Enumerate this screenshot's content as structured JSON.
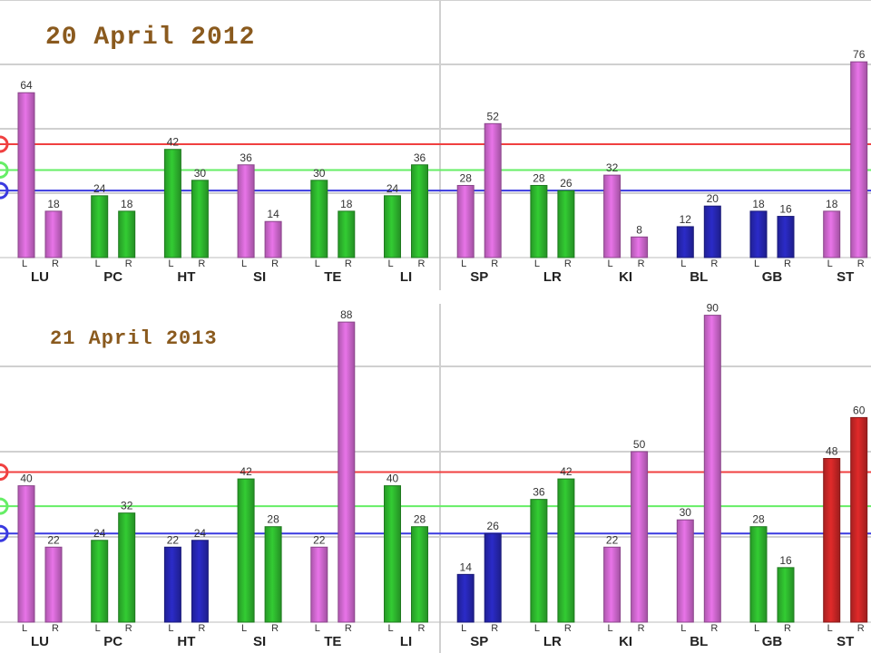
{
  "colors": {
    "magenta": "#e874e8",
    "green": "#33cc33",
    "blue": "#2b2bc8",
    "red": "#e02a2a",
    "line_red": "#f04040",
    "line_green": "#66ee66",
    "line_blue": "#3a3ae0",
    "grid": "#d0d0d0"
  },
  "chart_data": [
    {
      "type": "bar",
      "title": "20 April 2012",
      "ylim": [
        0,
        100
      ],
      "groups": [
        "LU",
        "PC",
        "HT",
        "SI",
        "TE",
        "LI",
        "SP",
        "LR",
        "KI",
        "BL",
        "GB",
        "ST"
      ],
      "sides": [
        "L",
        "R"
      ],
      "reference_lines": [
        {
          "color": "red",
          "value": 44
        },
        {
          "color": "green",
          "value": 34
        },
        {
          "color": "blue",
          "value": 26
        }
      ],
      "bars": [
        {
          "group": "LU",
          "side": "L",
          "value": 64,
          "color": "magenta"
        },
        {
          "group": "LU",
          "side": "R",
          "value": 18,
          "color": "magenta"
        },
        {
          "group": "PC",
          "side": "L",
          "value": 24,
          "color": "green"
        },
        {
          "group": "PC",
          "side": "R",
          "value": 18,
          "color": "green"
        },
        {
          "group": "HT",
          "side": "L",
          "value": 42,
          "color": "green"
        },
        {
          "group": "HT",
          "side": "R",
          "value": 30,
          "color": "green"
        },
        {
          "group": "SI",
          "side": "L",
          "value": 36,
          "color": "magenta"
        },
        {
          "group": "SI",
          "side": "R",
          "value": 14,
          "color": "magenta"
        },
        {
          "group": "TE",
          "side": "L",
          "value": 30,
          "color": "green"
        },
        {
          "group": "TE",
          "side": "R",
          "value": 18,
          "color": "green"
        },
        {
          "group": "LI",
          "side": "L",
          "value": 24,
          "color": "green"
        },
        {
          "group": "LI",
          "side": "R",
          "value": 36,
          "color": "green"
        },
        {
          "group": "SP",
          "side": "L",
          "value": 28,
          "color": "magenta"
        },
        {
          "group": "SP",
          "side": "R",
          "value": 52,
          "color": "magenta"
        },
        {
          "group": "LR",
          "side": "L",
          "value": 28,
          "color": "green"
        },
        {
          "group": "LR",
          "side": "R",
          "value": 26,
          "color": "green"
        },
        {
          "group": "KI",
          "side": "L",
          "value": 32,
          "color": "magenta"
        },
        {
          "group": "KI",
          "side": "R",
          "value": 8,
          "color": "magenta"
        },
        {
          "group": "BL",
          "side": "L",
          "value": 12,
          "color": "blue"
        },
        {
          "group": "BL",
          "side": "R",
          "value": 20,
          "color": "blue"
        },
        {
          "group": "GB",
          "side": "L",
          "value": 18,
          "color": "blue"
        },
        {
          "group": "GB",
          "side": "R",
          "value": 16,
          "color": "blue"
        },
        {
          "group": "ST",
          "side": "L",
          "value": 18,
          "color": "magenta"
        },
        {
          "group": "ST",
          "side": "R",
          "value": 76,
          "color": "magenta"
        }
      ]
    },
    {
      "type": "bar",
      "title": "21 April 2013",
      "ylim": [
        0,
        100
      ],
      "groups": [
        "LU",
        "PC",
        "HT",
        "SI",
        "TE",
        "LI",
        "SP",
        "LR",
        "KI",
        "BL",
        "GB",
        "ST"
      ],
      "sides": [
        "L",
        "R"
      ],
      "reference_lines": [
        {
          "color": "red",
          "value": 44
        },
        {
          "color": "green",
          "value": 34
        },
        {
          "color": "blue",
          "value": 26
        }
      ],
      "bars": [
        {
          "group": "LU",
          "side": "L",
          "value": 40,
          "color": "magenta"
        },
        {
          "group": "LU",
          "side": "R",
          "value": 22,
          "color": "magenta"
        },
        {
          "group": "PC",
          "side": "L",
          "value": 24,
          "color": "green"
        },
        {
          "group": "PC",
          "side": "R",
          "value": 32,
          "color": "green"
        },
        {
          "group": "HT",
          "side": "L",
          "value": 22,
          "color": "blue"
        },
        {
          "group": "HT",
          "side": "R",
          "value": 24,
          "color": "blue"
        },
        {
          "group": "SI",
          "side": "L",
          "value": 42,
          "color": "green"
        },
        {
          "group": "SI",
          "side": "R",
          "value": 28,
          "color": "green"
        },
        {
          "group": "TE",
          "side": "L",
          "value": 22,
          "color": "magenta"
        },
        {
          "group": "TE",
          "side": "R",
          "value": 88,
          "color": "magenta"
        },
        {
          "group": "LI",
          "side": "L",
          "value": 40,
          "color": "green"
        },
        {
          "group": "LI",
          "side": "R",
          "value": 28,
          "color": "green"
        },
        {
          "group": "SP",
          "side": "L",
          "value": 14,
          "color": "blue"
        },
        {
          "group": "SP",
          "side": "R",
          "value": 26,
          "color": "blue"
        },
        {
          "group": "LR",
          "side": "L",
          "value": 36,
          "color": "green"
        },
        {
          "group": "LR",
          "side": "R",
          "value": 42,
          "color": "green"
        },
        {
          "group": "KI",
          "side": "L",
          "value": 22,
          "color": "magenta"
        },
        {
          "group": "KI",
          "side": "R",
          "value": 50,
          "color": "magenta"
        },
        {
          "group": "BL",
          "side": "L",
          "value": 30,
          "color": "magenta"
        },
        {
          "group": "BL",
          "side": "R",
          "value": 90,
          "color": "magenta"
        },
        {
          "group": "GB",
          "side": "L",
          "value": 28,
          "color": "green"
        },
        {
          "group": "GB",
          "side": "R",
          "value": 16,
          "color": "green"
        },
        {
          "group": "ST",
          "side": "L",
          "value": 48,
          "color": "red"
        },
        {
          "group": "ST",
          "side": "R",
          "value": 60,
          "color": "red"
        }
      ]
    }
  ]
}
